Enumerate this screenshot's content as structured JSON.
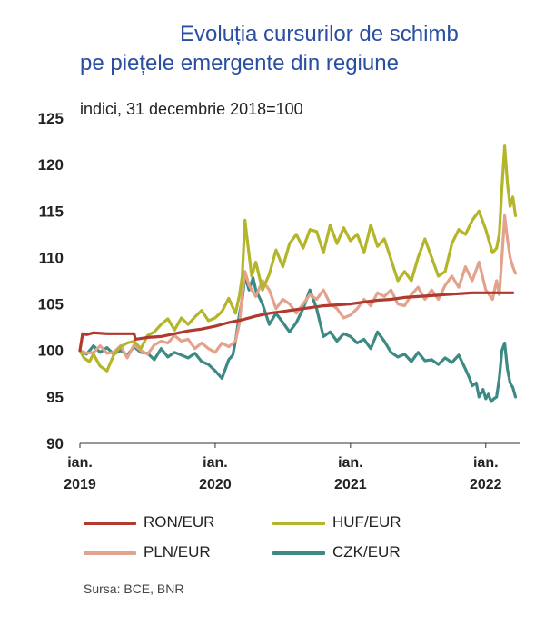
{
  "title_line1": "Evoluția cursurilor de schimb",
  "title_line2": "pe piețele emergente din regiune",
  "source": "Sursa: BCE, BNR",
  "chart_data": {
    "type": "line",
    "title": "Evoluția cursurilor de schimb pe piețele emergente din regiune",
    "ylabel": "indici, 31 decembrie 2018=100",
    "xlabel": "",
    "ylim": [
      90,
      125
    ],
    "yticks": [
      90,
      95,
      100,
      105,
      110,
      115,
      120,
      125
    ],
    "xlim": [
      2019.0,
      2022.25
    ],
    "xticks": [
      {
        "x": 2019,
        "line1": "ian.",
        "line2": "2019"
      },
      {
        "x": 2020,
        "line1": "ian.",
        "line2": "2020"
      },
      {
        "x": 2021,
        "line1": "ian.",
        "line2": "2021"
      },
      {
        "x": 2022,
        "line1": "ian.",
        "line2": "2022"
      }
    ],
    "series": [
      {
        "name": "RON/EUR",
        "color": "#b03a2e",
        "points": [
          [
            2019.0,
            100.0
          ],
          [
            2019.02,
            101.8
          ],
          [
            2019.05,
            101.7
          ],
          [
            2019.1,
            101.9
          ],
          [
            2019.2,
            101.8
          ],
          [
            2019.3,
            101.8
          ],
          [
            2019.4,
            101.8
          ],
          [
            2019.41,
            101.2
          ],
          [
            2019.5,
            101.4
          ],
          [
            2019.6,
            101.5
          ],
          [
            2019.7,
            101.8
          ],
          [
            2019.8,
            102.1
          ],
          [
            2019.9,
            102.3
          ],
          [
            2020.0,
            102.6
          ],
          [
            2020.1,
            103.0
          ],
          [
            2020.2,
            103.3
          ],
          [
            2020.3,
            103.7
          ],
          [
            2020.4,
            104.0
          ],
          [
            2020.5,
            104.2
          ],
          [
            2020.6,
            104.4
          ],
          [
            2020.7,
            104.6
          ],
          [
            2020.8,
            104.8
          ],
          [
            2020.9,
            104.9
          ],
          [
            2021.0,
            105.0
          ],
          [
            2021.1,
            105.2
          ],
          [
            2021.2,
            105.4
          ],
          [
            2021.3,
            105.5
          ],
          [
            2021.4,
            105.7
          ],
          [
            2021.5,
            105.8
          ],
          [
            2021.6,
            105.9
          ],
          [
            2021.7,
            106.0
          ],
          [
            2021.8,
            106.1
          ],
          [
            2021.9,
            106.2
          ],
          [
            2022.0,
            106.2
          ],
          [
            2022.1,
            106.2
          ],
          [
            2022.2,
            106.2
          ]
        ]
      },
      {
        "name": "HUF/EUR",
        "color": "#b3b52a",
        "points": [
          [
            2019.0,
            100.0
          ],
          [
            2019.03,
            99.2
          ],
          [
            2019.07,
            98.8
          ],
          [
            2019.1,
            99.6
          ],
          [
            2019.15,
            98.3
          ],
          [
            2019.2,
            97.8
          ],
          [
            2019.25,
            99.5
          ],
          [
            2019.3,
            100.4
          ],
          [
            2019.35,
            100.8
          ],
          [
            2019.4,
            101.0
          ],
          [
            2019.45,
            100.2
          ],
          [
            2019.5,
            101.6
          ],
          [
            2019.55,
            102.0
          ],
          [
            2019.6,
            102.8
          ],
          [
            2019.65,
            103.4
          ],
          [
            2019.7,
            102.2
          ],
          [
            2019.75,
            103.5
          ],
          [
            2019.8,
            102.8
          ],
          [
            2019.85,
            103.6
          ],
          [
            2019.9,
            104.3
          ],
          [
            2019.95,
            103.2
          ],
          [
            2020.0,
            103.5
          ],
          [
            2020.05,
            104.2
          ],
          [
            2020.1,
            105.6
          ],
          [
            2020.15,
            104.0
          ],
          [
            2020.18,
            106.0
          ],
          [
            2020.2,
            108.0
          ],
          [
            2020.22,
            114.0
          ],
          [
            2020.24,
            111.5
          ],
          [
            2020.27,
            108.0
          ],
          [
            2020.3,
            109.5
          ],
          [
            2020.35,
            106.5
          ],
          [
            2020.4,
            108.2
          ],
          [
            2020.45,
            110.8
          ],
          [
            2020.5,
            109.0
          ],
          [
            2020.55,
            111.5
          ],
          [
            2020.6,
            112.5
          ],
          [
            2020.65,
            111.0
          ],
          [
            2020.7,
            113.0
          ],
          [
            2020.75,
            112.8
          ],
          [
            2020.8,
            110.5
          ],
          [
            2020.85,
            113.5
          ],
          [
            2020.9,
            111.5
          ],
          [
            2020.95,
            113.2
          ],
          [
            2021.0,
            111.8
          ],
          [
            2021.05,
            112.5
          ],
          [
            2021.1,
            110.5
          ],
          [
            2021.15,
            113.5
          ],
          [
            2021.2,
            111.2
          ],
          [
            2021.25,
            112.0
          ],
          [
            2021.3,
            109.8
          ],
          [
            2021.35,
            107.5
          ],
          [
            2021.4,
            108.5
          ],
          [
            2021.45,
            107.5
          ],
          [
            2021.5,
            110.0
          ],
          [
            2021.55,
            112.0
          ],
          [
            2021.6,
            110.0
          ],
          [
            2021.65,
            108.0
          ],
          [
            2021.7,
            108.5
          ],
          [
            2021.75,
            111.5
          ],
          [
            2021.8,
            113.0
          ],
          [
            2021.85,
            112.5
          ],
          [
            2021.9,
            114.0
          ],
          [
            2021.95,
            115.0
          ],
          [
            2022.0,
            113.0
          ],
          [
            2022.05,
            110.5
          ],
          [
            2022.08,
            111.0
          ],
          [
            2022.1,
            112.5
          ],
          [
            2022.12,
            117.5
          ],
          [
            2022.14,
            122.0
          ],
          [
            2022.16,
            118.0
          ],
          [
            2022.18,
            115.5
          ],
          [
            2022.2,
            116.5
          ],
          [
            2022.22,
            114.5
          ]
        ]
      },
      {
        "name": "PLN/EUR",
        "color": "#e3a28c",
        "points": [
          [
            2019.0,
            100.0
          ],
          [
            2019.05,
            99.7
          ],
          [
            2019.1,
            99.8
          ],
          [
            2019.15,
            100.5
          ],
          [
            2019.2,
            99.7
          ],
          [
            2019.25,
            99.8
          ],
          [
            2019.3,
            100.5
          ],
          [
            2019.35,
            99.2
          ],
          [
            2019.4,
            100.6
          ],
          [
            2019.45,
            100.0
          ],
          [
            2019.5,
            99.6
          ],
          [
            2019.55,
            100.6
          ],
          [
            2019.6,
            101.0
          ],
          [
            2019.65,
            100.8
          ],
          [
            2019.7,
            101.6
          ],
          [
            2019.75,
            101.0
          ],
          [
            2019.8,
            101.2
          ],
          [
            2019.85,
            100.2
          ],
          [
            2019.9,
            100.8
          ],
          [
            2019.95,
            100.2
          ],
          [
            2020.0,
            99.8
          ],
          [
            2020.05,
            100.8
          ],
          [
            2020.1,
            100.4
          ],
          [
            2020.15,
            101.0
          ],
          [
            2020.18,
            103.0
          ],
          [
            2020.2,
            106.0
          ],
          [
            2020.22,
            108.5
          ],
          [
            2020.25,
            107.0
          ],
          [
            2020.3,
            105.8
          ],
          [
            2020.35,
            107.5
          ],
          [
            2020.4,
            106.5
          ],
          [
            2020.45,
            104.5
          ],
          [
            2020.5,
            105.5
          ],
          [
            2020.55,
            105.0
          ],
          [
            2020.6,
            104.0
          ],
          [
            2020.65,
            105.0
          ],
          [
            2020.7,
            106.0
          ],
          [
            2020.75,
            105.5
          ],
          [
            2020.8,
            106.5
          ],
          [
            2020.85,
            105.0
          ],
          [
            2020.9,
            104.5
          ],
          [
            2020.95,
            103.5
          ],
          [
            2021.0,
            103.8
          ],
          [
            2021.05,
            104.5
          ],
          [
            2021.1,
            105.5
          ],
          [
            2021.15,
            104.8
          ],
          [
            2021.2,
            106.2
          ],
          [
            2021.25,
            105.8
          ],
          [
            2021.3,
            106.5
          ],
          [
            2021.35,
            105.0
          ],
          [
            2021.4,
            104.8
          ],
          [
            2021.45,
            106.0
          ],
          [
            2021.5,
            106.8
          ],
          [
            2021.55,
            105.5
          ],
          [
            2021.6,
            106.5
          ],
          [
            2021.65,
            105.5
          ],
          [
            2021.7,
            107.0
          ],
          [
            2021.75,
            108.0
          ],
          [
            2021.8,
            106.8
          ],
          [
            2021.85,
            109.0
          ],
          [
            2021.9,
            107.5
          ],
          [
            2021.95,
            109.5
          ],
          [
            2022.0,
            106.5
          ],
          [
            2022.05,
            105.5
          ],
          [
            2022.08,
            107.5
          ],
          [
            2022.1,
            106.0
          ],
          [
            2022.12,
            110.0
          ],
          [
            2022.14,
            114.5
          ],
          [
            2022.16,
            112.0
          ],
          [
            2022.18,
            110.0
          ],
          [
            2022.2,
            109.0
          ],
          [
            2022.22,
            108.3
          ]
        ]
      },
      {
        "name": "CZK/EUR",
        "color": "#3d8a84",
        "points": [
          [
            2019.0,
            100.0
          ],
          [
            2019.05,
            99.6
          ],
          [
            2019.1,
            100.5
          ],
          [
            2019.15,
            99.8
          ],
          [
            2019.2,
            100.3
          ],
          [
            2019.25,
            99.6
          ],
          [
            2019.3,
            100.0
          ],
          [
            2019.35,
            99.5
          ],
          [
            2019.4,
            100.4
          ],
          [
            2019.45,
            99.8
          ],
          [
            2019.5,
            99.7
          ],
          [
            2019.55,
            99.0
          ],
          [
            2019.6,
            100.2
          ],
          [
            2019.65,
            99.3
          ],
          [
            2019.7,
            99.8
          ],
          [
            2019.75,
            99.5
          ],
          [
            2019.8,
            99.2
          ],
          [
            2019.85,
            99.7
          ],
          [
            2019.9,
            98.8
          ],
          [
            2019.95,
            98.5
          ],
          [
            2020.0,
            97.8
          ],
          [
            2020.05,
            97.0
          ],
          [
            2020.1,
            99.0
          ],
          [
            2020.13,
            99.5
          ],
          [
            2020.15,
            101.0
          ],
          [
            2020.18,
            104.0
          ],
          [
            2020.2,
            105.5
          ],
          [
            2020.22,
            108.0
          ],
          [
            2020.25,
            106.5
          ],
          [
            2020.28,
            107.8
          ],
          [
            2020.3,
            106.5
          ],
          [
            2020.35,
            105.0
          ],
          [
            2020.4,
            102.8
          ],
          [
            2020.45,
            104.0
          ],
          [
            2020.5,
            103.0
          ],
          [
            2020.55,
            102.0
          ],
          [
            2020.6,
            103.0
          ],
          [
            2020.65,
            104.5
          ],
          [
            2020.7,
            106.5
          ],
          [
            2020.75,
            104.5
          ],
          [
            2020.8,
            101.5
          ],
          [
            2020.85,
            102.0
          ],
          [
            2020.9,
            101.0
          ],
          [
            2020.95,
            101.8
          ],
          [
            2021.0,
            101.5
          ],
          [
            2021.05,
            100.8
          ],
          [
            2021.1,
            101.2
          ],
          [
            2021.15,
            100.2
          ],
          [
            2021.2,
            102.0
          ],
          [
            2021.25,
            101.0
          ],
          [
            2021.3,
            99.8
          ],
          [
            2021.35,
            99.3
          ],
          [
            2021.4,
            99.6
          ],
          [
            2021.45,
            98.8
          ],
          [
            2021.5,
            99.8
          ],
          [
            2021.55,
            98.9
          ],
          [
            2021.6,
            99.0
          ],
          [
            2021.65,
            98.5
          ],
          [
            2021.7,
            99.2
          ],
          [
            2021.75,
            98.7
          ],
          [
            2021.8,
            99.5
          ],
          [
            2021.85,
            98.0
          ],
          [
            2021.88,
            97.0
          ],
          [
            2021.9,
            96.2
          ],
          [
            2021.93,
            96.5
          ],
          [
            2021.95,
            95.0
          ],
          [
            2021.98,
            95.8
          ],
          [
            2022.0,
            94.8
          ],
          [
            2022.02,
            95.3
          ],
          [
            2022.04,
            94.5
          ],
          [
            2022.06,
            94.8
          ],
          [
            2022.08,
            95.0
          ],
          [
            2022.1,
            97.0
          ],
          [
            2022.12,
            100.0
          ],
          [
            2022.14,
            100.8
          ],
          [
            2022.16,
            98.0
          ],
          [
            2022.18,
            96.5
          ],
          [
            2022.2,
            96.0
          ],
          [
            2022.22,
            95.0
          ]
        ]
      }
    ]
  }
}
